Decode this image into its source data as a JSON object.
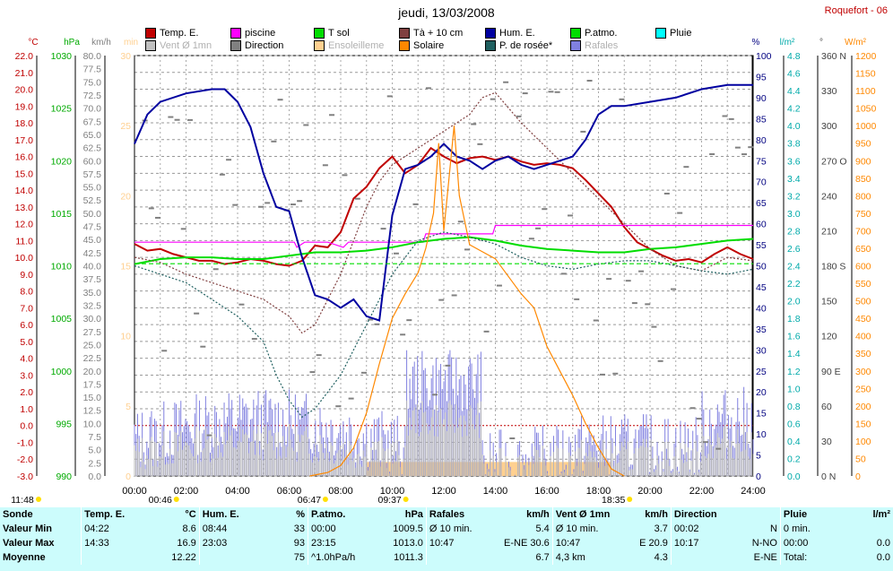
{
  "title": "jeudi, 13/03/2008",
  "station": "Roquefort - 06",
  "colors": {
    "temp": "#c00000",
    "piscine": "#ff00ff",
    "tsol": "#00dd00",
    "t10": "#804040",
    "hum": "#0000a0",
    "patmo": "#00dd00",
    "pluie": "#00ffff",
    "vent": "#b0b0b0",
    "direction": "#808080",
    "ensol": "#ffd090",
    "solaire": "#ff8800",
    "rosee": "#206060",
    "rafales": "#8080e0",
    "grid": "#808080"
  },
  "legend": [
    {
      "label": "Temp. E.",
      "color": "#c00000",
      "style": "on"
    },
    {
      "label": "piscine",
      "color": "#ff00ff",
      "style": "on"
    },
    {
      "label": "T sol",
      "color": "#00dd00",
      "style": "on"
    },
    {
      "label": "Tà + 10 cm",
      "color": "#804040",
      "style": "on"
    },
    {
      "label": "Hum. E.",
      "color": "#0000a0",
      "style": "on"
    },
    {
      "label": "P.atmo.",
      "color": "#00dd00",
      "style": "on"
    },
    {
      "label": "Pluie",
      "color": "#00ffff",
      "style": "on"
    },
    {
      "label": "Vent Ø 1mn",
      "color": "#c0c0c0",
      "style": "off"
    },
    {
      "label": "Direction",
      "color": "#808080",
      "style": "on"
    },
    {
      "label": "Ensoleilleme",
      "color": "#ffd090",
      "style": "off"
    },
    {
      "label": "Solaire",
      "color": "#ff8800",
      "style": "on"
    },
    {
      "label": "P. de rosée*",
      "color": "#206060",
      "style": "on"
    },
    {
      "label": "Rafales",
      "color": "#8080e0",
      "style": "off"
    }
  ],
  "chart_data": {
    "type": "line",
    "x_ticks": [
      "00:00",
      "02:00",
      "04:00",
      "06:00",
      "08:00",
      "10:00",
      "12:00",
      "14:00",
      "16:00",
      "18:00",
      "20:00",
      "22:00",
      "24:00"
    ],
    "axes": [
      {
        "unit": "°C",
        "color": "#c00000",
        "min": -3,
        "max": 22,
        "step": 1,
        "decimals": 1
      },
      {
        "unit": "hPa",
        "color": "#00aa00",
        "min": 990,
        "max": 1030,
        "step": 5,
        "decimals": 0
      },
      {
        "unit": "km/h",
        "color": "#808080",
        "min": 0,
        "max": 80,
        "step": 2.5,
        "decimals": 1
      },
      {
        "unit": "min",
        "color": "#ffd090",
        "min": 0,
        "max": 30,
        "step": 5,
        "decimals": 0
      },
      {
        "unit": "%",
        "color": "#000080",
        "min": 0,
        "max": 100,
        "step": 5,
        "decimals": 0
      },
      {
        "unit": "l/m²",
        "color": "#00aaaa",
        "min": 0,
        "max": 4.8,
        "step": 0.2,
        "decimals": 1
      },
      {
        "unit": "°",
        "color": "#404040",
        "min": 0,
        "max": 360,
        "step": 30,
        "decimals": 0,
        "tick_labels": [
          "0 N",
          "30",
          "60",
          "90 E",
          "120",
          "150",
          "180 S",
          "210",
          "240",
          "270 O",
          "300",
          "330",
          "360 N"
        ]
      },
      {
        "unit": "W/m²",
        "color": "#ff8800",
        "min": 0,
        "max": 1200,
        "step": 50,
        "decimals": 0
      }
    ],
    "sun_markers": [
      {
        "time": "11:48",
        "pos_h": 0
      },
      {
        "time": "00:46",
        "pos_h": 1.0
      },
      {
        "time": "06:47",
        "pos_h": 6.78
      },
      {
        "time": "09:37",
        "pos_h": 9.9
      },
      {
        "time": "18:35",
        "pos_h": 18.58
      }
    ],
    "series": [
      {
        "name": "Temp. E.",
        "axis": 0,
        "color": "#c00000",
        "points": [
          [
            0,
            10.8
          ],
          [
            0.5,
            10.4
          ],
          [
            1,
            10.5
          ],
          [
            1.5,
            10.2
          ],
          [
            2,
            10.0
          ],
          [
            2.5,
            9.8
          ],
          [
            3,
            9.8
          ],
          [
            3.5,
            9.6
          ],
          [
            4,
            9.7
          ],
          [
            4.5,
            9.9
          ],
          [
            5,
            9.8
          ],
          [
            5.5,
            9.6
          ],
          [
            6,
            9.5
          ],
          [
            6.5,
            9.8
          ],
          [
            7,
            10.7
          ],
          [
            7.5,
            10.6
          ],
          [
            8,
            11.5
          ],
          [
            8.5,
            13.5
          ],
          [
            9,
            14.2
          ],
          [
            9.5,
            15.3
          ],
          [
            10,
            16.0
          ],
          [
            10.5,
            15.0
          ],
          [
            11,
            15.5
          ],
          [
            11.5,
            16.5
          ],
          [
            12,
            16.0
          ],
          [
            12.5,
            15.6
          ],
          [
            13,
            15.9
          ],
          [
            13.5,
            16.0
          ],
          [
            14,
            15.8
          ],
          [
            14.5,
            16.0
          ],
          [
            15,
            15.7
          ],
          [
            15.5,
            15.5
          ],
          [
            16,
            15.6
          ],
          [
            16.5,
            15.5
          ],
          [
            17,
            15.3
          ],
          [
            17.5,
            14.6
          ],
          [
            18,
            13.8
          ],
          [
            18.5,
            13.0
          ],
          [
            19,
            11.8
          ],
          [
            19.5,
            10.9
          ],
          [
            20,
            10.5
          ],
          [
            20.5,
            10.1
          ],
          [
            21,
            9.8
          ],
          [
            21.5,
            9.9
          ],
          [
            22,
            9.7
          ],
          [
            22.5,
            10.2
          ],
          [
            23,
            10.6
          ],
          [
            23.5,
            10.2
          ],
          [
            24,
            9.9
          ]
        ]
      },
      {
        "name": "piscine",
        "axis": 0,
        "color": "#ff00ff",
        "points": [
          [
            0,
            10.9
          ],
          [
            6.2,
            10.9
          ],
          [
            6.3,
            10.6
          ],
          [
            6.6,
            10.9
          ],
          [
            7.5,
            10.9
          ],
          [
            8.1,
            10.6
          ],
          [
            8.3,
            10.9
          ],
          [
            11.2,
            10.9
          ],
          [
            11.3,
            11.4
          ],
          [
            13.9,
            11.4
          ],
          [
            14,
            11.9
          ],
          [
            24,
            11.9
          ]
        ]
      },
      {
        "name": "T sol",
        "axis": 0,
        "color": "#00dd00",
        "points": [
          [
            0,
            9.6
          ],
          [
            1,
            9.9
          ],
          [
            2,
            10.0
          ],
          [
            3,
            10.0
          ],
          [
            4,
            9.9
          ],
          [
            5,
            9.9
          ],
          [
            6,
            10.1
          ],
          [
            7,
            10.3
          ],
          [
            8,
            10.3
          ],
          [
            9,
            10.4
          ],
          [
            10,
            10.6
          ],
          [
            11,
            10.9
          ],
          [
            12,
            11.1
          ],
          [
            13,
            11.2
          ],
          [
            14,
            11.0
          ],
          [
            15,
            10.7
          ],
          [
            16,
            10.5
          ],
          [
            17,
            10.4
          ],
          [
            18,
            10.3
          ],
          [
            19,
            10.3
          ],
          [
            20,
            10.5
          ],
          [
            21,
            10.6
          ],
          [
            22,
            10.8
          ],
          [
            23,
            11.0
          ],
          [
            24,
            11.1
          ]
        ]
      },
      {
        "name": "Tà + 10 cm",
        "axis": 0,
        "color": "#804040",
        "dash": "2,2",
        "points": [
          [
            0,
            10.0
          ],
          [
            1,
            9.7
          ],
          [
            2,
            9.0
          ],
          [
            3,
            8.5
          ],
          [
            4,
            8.0
          ],
          [
            5,
            7.5
          ],
          [
            6,
            6.5
          ],
          [
            6.5,
            5.5
          ],
          [
            7,
            6.0
          ],
          [
            7.5,
            7.5
          ],
          [
            8,
            9.0
          ],
          [
            8.5,
            11.0
          ],
          [
            9,
            13.0
          ],
          [
            9.5,
            14.5
          ],
          [
            10,
            15.5
          ],
          [
            11,
            16.5
          ],
          [
            12,
            17.5
          ],
          [
            13,
            18.5
          ],
          [
            13.5,
            19.5
          ],
          [
            14,
            19.8
          ],
          [
            15,
            18.0
          ],
          [
            16,
            16.5
          ],
          [
            17,
            15.0
          ],
          [
            18,
            13.5
          ],
          [
            19,
            12.0
          ],
          [
            20,
            10.5
          ],
          [
            21,
            9.5
          ],
          [
            22,
            9.2
          ],
          [
            23,
            10.0
          ],
          [
            24,
            9.8
          ]
        ]
      },
      {
        "name": "P. de rosée*",
        "axis": 0,
        "color": "#206060",
        "dash": "2,2",
        "points": [
          [
            0,
            9.5
          ],
          [
            1,
            9.0
          ],
          [
            2,
            8.5
          ],
          [
            3,
            7.5
          ],
          [
            4,
            6.5
          ],
          [
            5,
            5.0
          ],
          [
            5.5,
            3.0
          ],
          [
            6,
            1.5
          ],
          [
            6.5,
            0.5
          ],
          [
            7,
            1.0
          ],
          [
            8,
            3.0
          ],
          [
            9,
            6.0
          ],
          [
            10,
            9.0
          ],
          [
            11,
            11.0
          ],
          [
            12,
            11.5
          ],
          [
            13,
            11.2
          ],
          [
            14,
            10.8
          ],
          [
            15,
            10.0
          ],
          [
            16,
            9.5
          ],
          [
            17,
            9.3
          ],
          [
            18,
            9.6
          ],
          [
            19,
            9.8
          ],
          [
            20,
            9.8
          ],
          [
            21,
            9.5
          ],
          [
            22,
            9.2
          ],
          [
            23,
            9.0
          ],
          [
            24,
            9.3
          ]
        ]
      },
      {
        "name": "Hum. E.",
        "axis": 4,
        "color": "#0000a0",
        "points": [
          [
            0,
            79
          ],
          [
            0.5,
            86
          ],
          [
            1,
            89
          ],
          [
            2,
            91
          ],
          [
            3,
            92
          ],
          [
            3.5,
            92
          ],
          [
            4,
            89
          ],
          [
            4.5,
            83
          ],
          [
            5,
            72
          ],
          [
            5.5,
            64
          ],
          [
            6,
            63
          ],
          [
            6.5,
            52
          ],
          [
            7,
            43
          ],
          [
            7.5,
            42
          ],
          [
            8,
            40
          ],
          [
            8.5,
            42
          ],
          [
            9,
            38
          ],
          [
            9.5,
            37
          ],
          [
            10,
            62
          ],
          [
            10.5,
            73
          ],
          [
            11,
            74
          ],
          [
            11.5,
            76
          ],
          [
            12,
            79
          ],
          [
            12.5,
            76
          ],
          [
            13,
            75
          ],
          [
            13.5,
            73
          ],
          [
            14,
            75
          ],
          [
            14.5,
            76
          ],
          [
            15,
            74
          ],
          [
            15.5,
            73
          ],
          [
            16,
            74
          ],
          [
            16.5,
            75
          ],
          [
            17,
            76
          ],
          [
            17.5,
            80
          ],
          [
            18,
            86
          ],
          [
            18.5,
            88
          ],
          [
            19,
            88
          ],
          [
            20,
            89
          ],
          [
            21,
            90
          ],
          [
            22,
            92
          ],
          [
            23,
            93
          ],
          [
            24,
            93
          ]
        ]
      },
      {
        "name": "P.atmo.",
        "axis": 1,
        "color": "#00dd00",
        "dash": "5,3",
        "points": [
          [
            0,
            1010.2
          ],
          [
            24,
            1010.2
          ]
        ]
      },
      {
        "name": "Solaire",
        "axis": 7,
        "color": "#ff8800",
        "points": [
          [
            6.8,
            0
          ],
          [
            7.5,
            10
          ],
          [
            8,
            30
          ],
          [
            8.5,
            80
          ],
          [
            9,
            180
          ],
          [
            9.5,
            320
          ],
          [
            10,
            450
          ],
          [
            10.5,
            520
          ],
          [
            11,
            580
          ],
          [
            11.3,
            650
          ],
          [
            11.6,
            750
          ],
          [
            11.8,
            950
          ],
          [
            12,
            700
          ],
          [
            12.2,
            850
          ],
          [
            12.4,
            1000
          ],
          [
            12.6,
            800
          ],
          [
            13,
            660
          ],
          [
            13.5,
            640
          ],
          [
            14,
            620
          ],
          [
            15,
            520
          ],
          [
            15.5,
            480
          ],
          [
            16,
            370
          ],
          [
            16.5,
            300
          ],
          [
            17,
            230
          ],
          [
            17.5,
            150
          ],
          [
            18,
            80
          ],
          [
            18.5,
            20
          ],
          [
            19,
            0
          ]
        ]
      }
    ],
    "direction_note": "dashes by time-slot",
    "ensoleillement_note": "bars 09:00–18:30"
  },
  "summary": {
    "headers": [
      "Sonde",
      "Temp. E.",
      "°C",
      "Hum. E.",
      "%",
      "P.atmo.",
      "hPa",
      "Rafales",
      "km/h",
      "Vent Ø 1mn",
      "km/h",
      "Direction",
      "",
      "Pluie",
      "l/m²"
    ],
    "rows": [
      [
        "Valeur Min",
        "04:22",
        "8.6",
        "08:44",
        "33",
        "00:00",
        "1009.5",
        "Ø 10 min.",
        "5.4",
        "Ø 10 min.",
        "3.7",
        "00:02",
        "N",
        "0 min.",
        ""
      ],
      [
        "Valeur Max",
        "14:33",
        "16.9",
        "23:03",
        "93",
        "23:15",
        "1013.0",
        "10:47",
        "E-NE 30.6",
        "10:47",
        "E 20.9",
        "10:17",
        "N-NO",
        "00:00",
        "0.0"
      ],
      [
        "Moyenne",
        "",
        "12.22",
        "",
        "75",
        "^1.0hPa/h",
        "1011.3",
        "",
        "6.7",
        "4,3 km",
        "4.3",
        "",
        "E-NE",
        "Total:",
        "0.0"
      ]
    ]
  }
}
